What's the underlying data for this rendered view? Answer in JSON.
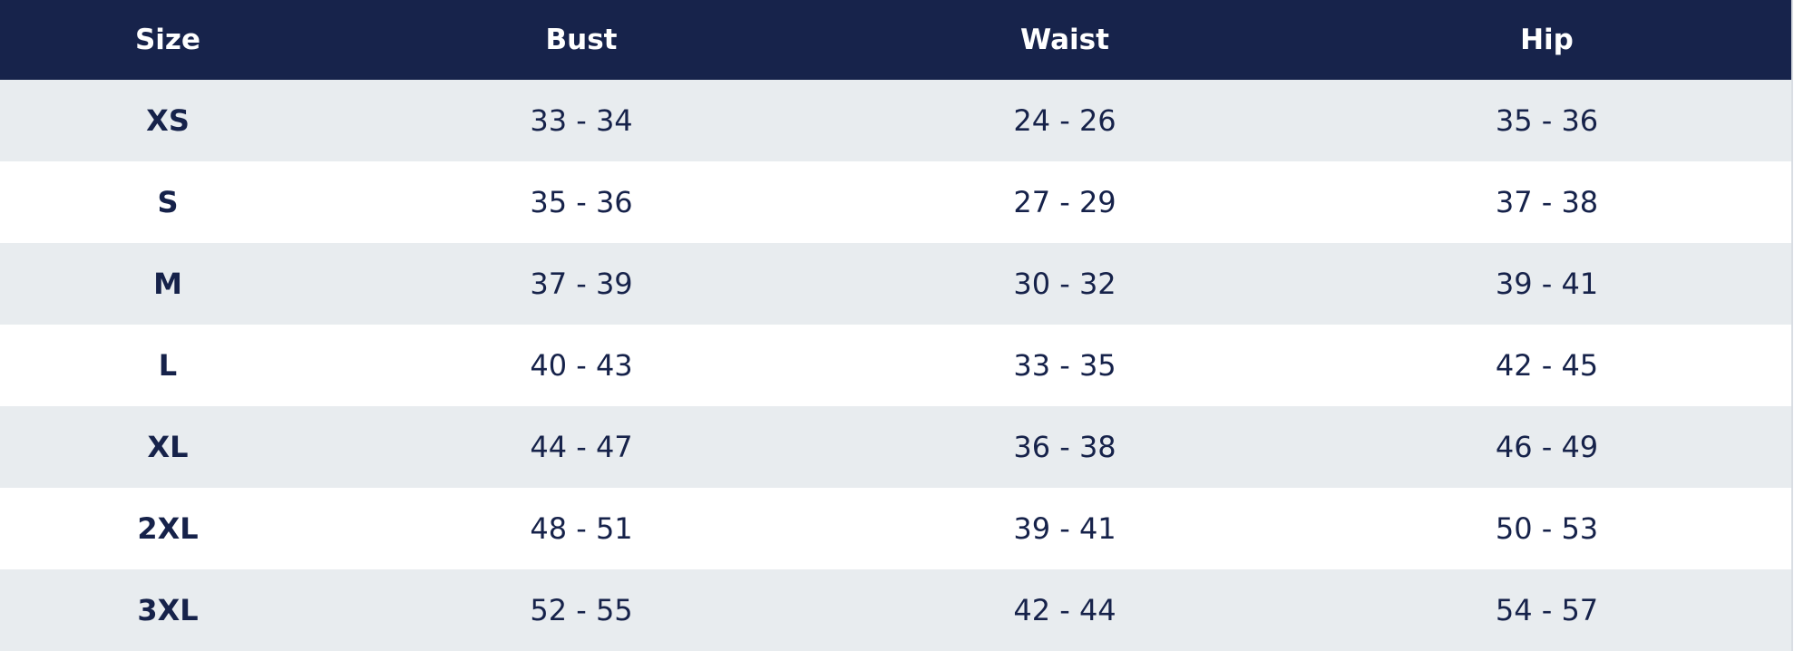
{
  "table": {
    "header": [
      "Size",
      "Bust",
      "Waist",
      "Hip"
    ],
    "rows": [
      [
        "XS",
        "33 - 34",
        "24 - 26",
        "35 - 36"
      ],
      [
        "S",
        "35 - 36",
        "27 - 29",
        "37 - 38"
      ],
      [
        "M",
        "37 - 39",
        "30 - 32",
        "39 - 41"
      ],
      [
        "L",
        "40 - 43",
        "33 - 35",
        "42 - 45"
      ],
      [
        "XL",
        "44 - 47",
        "36 - 38",
        "46 - 49"
      ],
      [
        "2XL",
        "48 - 51",
        "39 - 41",
        "50 - 53"
      ],
      [
        "3XL",
        "52 - 55",
        "42 - 44",
        "54 - 57"
      ]
    ]
  }
}
